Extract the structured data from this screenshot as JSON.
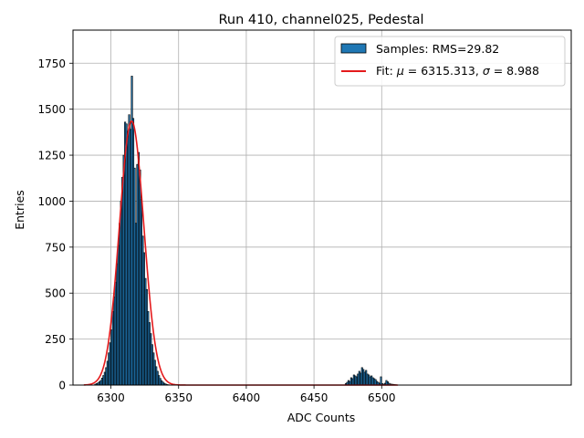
{
  "chart_data": {
    "type": "bar",
    "title": "Run 410, channel025, Pedestal",
    "xlabel": "ADC Counts",
    "ylabel": "Entries",
    "xlim": [
      6272,
      6640
    ],
    "ylim": [
      0,
      1930
    ],
    "grid": true,
    "legend_position": "top-right",
    "x_ticks": [
      6300,
      6350,
      6400,
      6450,
      6500
    ],
    "y_ticks": [
      0,
      250,
      500,
      750,
      1000,
      1250,
      1500,
      1750
    ],
    "histogram": {
      "name": "Samples: RMS=29.82",
      "color": "#1f77b4",
      "bin_width": 1,
      "bins": [
        [
          6288,
          5
        ],
        [
          6289,
          8
        ],
        [
          6290,
          12
        ],
        [
          6291,
          18
        ],
        [
          6292,
          25
        ],
        [
          6293,
          38
        ],
        [
          6294,
          52
        ],
        [
          6295,
          70
        ],
        [
          6296,
          95
        ],
        [
          6297,
          130
        ],
        [
          6298,
          175
        ],
        [
          6299,
          230
        ],
        [
          6300,
          300
        ],
        [
          6301,
          400
        ],
        [
          6302,
          480
        ],
        [
          6303,
          560
        ],
        [
          6304,
          660
        ],
        [
          6305,
          760
        ],
        [
          6306,
          880
        ],
        [
          6307,
          1000
        ],
        [
          6308,
          1130
        ],
        [
          6309,
          1250
        ],
        [
          6310,
          1430
        ],
        [
          6311,
          1420
        ],
        [
          6312,
          1380
        ],
        [
          6313,
          1470
        ],
        [
          6314,
          1390
        ],
        [
          6315,
          1680
        ],
        [
          6316,
          1450
        ],
        [
          6317,
          1180
        ],
        [
          6318,
          880
        ],
        [
          6319,
          1200
        ],
        [
          6320,
          1265
        ],
        [
          6321,
          1170
        ],
        [
          6322,
          1010
        ],
        [
          6323,
          810
        ],
        [
          6324,
          720
        ],
        [
          6325,
          580
        ],
        [
          6326,
          520
        ],
        [
          6327,
          400
        ],
        [
          6328,
          340
        ],
        [
          6329,
          280
        ],
        [
          6330,
          220
        ],
        [
          6331,
          175
        ],
        [
          6332,
          135
        ],
        [
          6333,
          100
        ],
        [
          6334,
          75
        ],
        [
          6335,
          52
        ],
        [
          6336,
          36
        ],
        [
          6337,
          24
        ],
        [
          6338,
          16
        ],
        [
          6339,
          10
        ],
        [
          6340,
          6
        ],
        [
          6341,
          3
        ],
        [
          6342,
          2
        ],
        [
          6473,
          8
        ],
        [
          6474,
          15
        ],
        [
          6475,
          25
        ],
        [
          6476,
          20
        ],
        [
          6477,
          40
        ],
        [
          6478,
          35
        ],
        [
          6479,
          55
        ],
        [
          6480,
          50
        ],
        [
          6481,
          45
        ],
        [
          6482,
          60
        ],
        [
          6483,
          75
        ],
        [
          6484,
          65
        ],
        [
          6485,
          95
        ],
        [
          6486,
          85
        ],
        [
          6487,
          70
        ],
        [
          6488,
          80
        ],
        [
          6489,
          60
        ],
        [
          6490,
          55
        ],
        [
          6491,
          45
        ],
        [
          6492,
          50
        ],
        [
          6493,
          40
        ],
        [
          6494,
          35
        ],
        [
          6495,
          30
        ],
        [
          6496,
          20
        ],
        [
          6497,
          15
        ],
        [
          6498,
          10
        ],
        [
          6499,
          45
        ],
        [
          6500,
          8
        ],
        [
          6501,
          5
        ],
        [
          6502,
          10
        ],
        [
          6503,
          25
        ],
        [
          6504,
          18
        ],
        [
          6505,
          10
        ],
        [
          6506,
          6
        ],
        [
          6507,
          5
        ],
        [
          6508,
          4
        ],
        [
          6509,
          3
        ],
        [
          6510,
          2
        ]
      ]
    },
    "fit": {
      "name": "Fit: μ = 6315.313, σ = 8.988",
      "legend_prefix": "Fit: ",
      "legend_mu_symbol": "μ",
      "legend_mu_value": " = 6315.313, ",
      "legend_sigma_symbol": "σ",
      "legend_sigma_value": " = 8.988",
      "color": "#e41a1c",
      "mu": 6315.313,
      "sigma": 8.988,
      "amplitude": 1435,
      "x_range": [
        6280,
        6512
      ]
    }
  }
}
